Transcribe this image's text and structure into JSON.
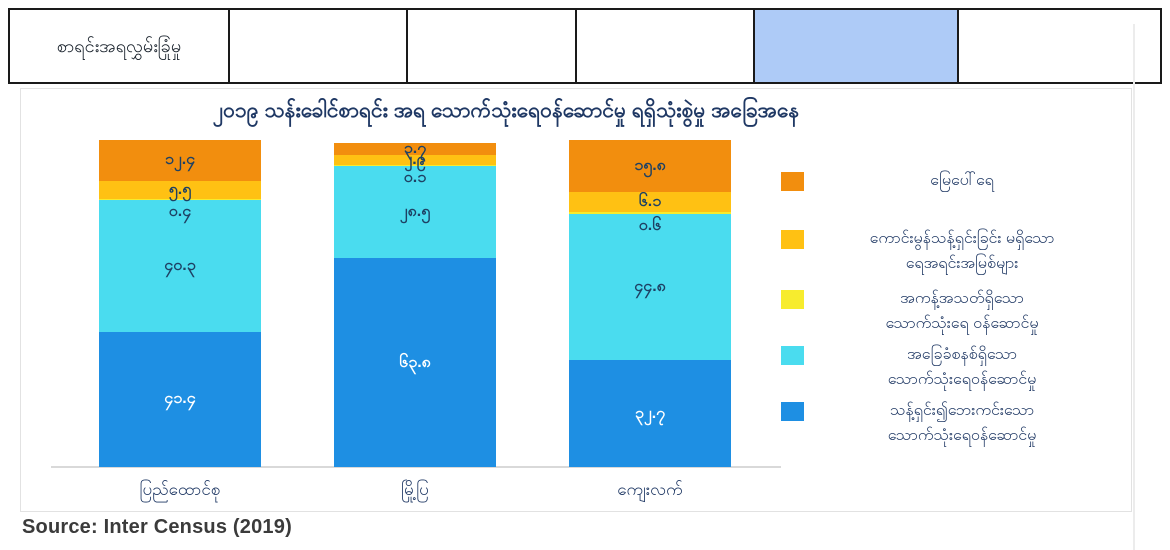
{
  "table": {
    "cells": [
      {
        "lines": [
          "စာရင်းအရ",
          "လွှမ်းခြုံမှု"
        ],
        "highlighted": false
      },
      {
        "lines": [],
        "highlighted": false
      },
      {
        "lines": [],
        "highlighted": false
      },
      {
        "lines": [],
        "highlighted": false
      },
      {
        "lines": [],
        "highlighted": true
      },
      {
        "lines": [],
        "highlighted": false
      }
    ],
    "highlight_color": "#aecbf7"
  },
  "chart": {
    "title": "၂၀၁၉ သန်းခေါင်စာရင်း အရ သောက်သုံးရေဝန်ဆောင်မှု ရရှိသုံးစွဲမှု အခြေအနေ"
  },
  "chart_data": {
    "type": "bar",
    "stacked": true,
    "title": "၂၀၁၉ သန်းခေါင်စာရင်း အရ သောက်သုံးရေဝန်ဆောင်မှု ရရှိသုံးစွဲမှု အခြေအနေ",
    "categories": [
      "ပြည်ထောင်စု",
      "မြို့ပြ",
      "ကျေးလက်"
    ],
    "ylim": [
      0,
      100
    ],
    "grid": false,
    "legend_position": "right",
    "series": [
      {
        "name": "သန့်ရှင်း၍ဘေးကင်းသော သောက်သုံးရေဝန်ဆောင်မှု",
        "color": "#1e8fe3",
        "label_color": "#ffffff",
        "values": [
          41.4,
          63.8,
          32.7
        ],
        "labels_mm": [
          "၄၁.၄",
          "၆၃.၈",
          "၃၂.၇"
        ]
      },
      {
        "name": "အခြေခံစနစ်ရှိသော သောက်သုံးရေဝန်ဆောင်မှု",
        "color": "#4adcef",
        "label_color": "#1e4164",
        "values": [
          40.3,
          28.5,
          44.8
        ],
        "labels_mm": [
          "၄၀.၃",
          "၂၈.၅",
          "၄၄.၈"
        ]
      },
      {
        "name": "အကန့်အသတ်ရှိသော သောက်သုံးရေ ဝန်ဆောင်မှု",
        "color": "#f7ec2e",
        "label_color": "#1e4164",
        "label_shift_down": true,
        "values": [
          0.4,
          0.1,
          0.6
        ],
        "labels_mm": [
          "၀.၄",
          "၀.၁",
          "၀.၆"
        ]
      },
      {
        "name": "ကောင်းမွန်သန့်ရှင်းခြင်း မရှိသော ရေအရင်းအမြစ်များ",
        "color": "#ffc113",
        "label_color": "#1e4164",
        "values": [
          5.5,
          2.9,
          6.1
        ],
        "labels_mm": [
          "၅.၅",
          "၂.၉",
          "၆.၁"
        ]
      },
      {
        "name": "မြေပေါ်ရေ",
        "color": "#f28e0e",
        "label_color": "#1e4164",
        "values": [
          12.4,
          3.7,
          15.8
        ],
        "labels_mm": [
          "၁၂.၄",
          "၃.၇",
          "၁၅.၈"
        ]
      }
    ]
  },
  "legend": {
    "items": [
      {
        "swatch_color": "#f28e0e",
        "lines": [
          "မြေပေါ်ရေ"
        ]
      },
      {
        "swatch_color": "#ffc113",
        "lines": [
          "ကောင်းမွန်သန့်ရှင်းခြင်း မရှိသော",
          "ရေအရင်းအမြစ်များ"
        ]
      },
      {
        "swatch_color": "#f7ec2e",
        "lines": [
          "အကန့်အသတ်ရှိသော",
          "သောက်သုံးရေ ဝန်ဆောင်မှု"
        ]
      },
      {
        "swatch_color": "#4adcef",
        "lines": [
          "အခြေခံစနစ်ရှိသော",
          "သောက်သုံးရေဝန်ဆောင်မှု"
        ]
      },
      {
        "swatch_color": "#1e8fe3",
        "lines": [
          "သန့်ရှင်း၍ဘေးကင်းသော",
          "သောက်သုံးရေဝန်ဆောင်မှု"
        ]
      }
    ]
  },
  "source": {
    "text": "Source: Inter Census (2019)"
  },
  "colors": {
    "title_navy": "#1f3864",
    "data_label_navy": "#1e4164",
    "table_highlight": "#aecbf7",
    "axis_line": "#d9d9d9"
  }
}
